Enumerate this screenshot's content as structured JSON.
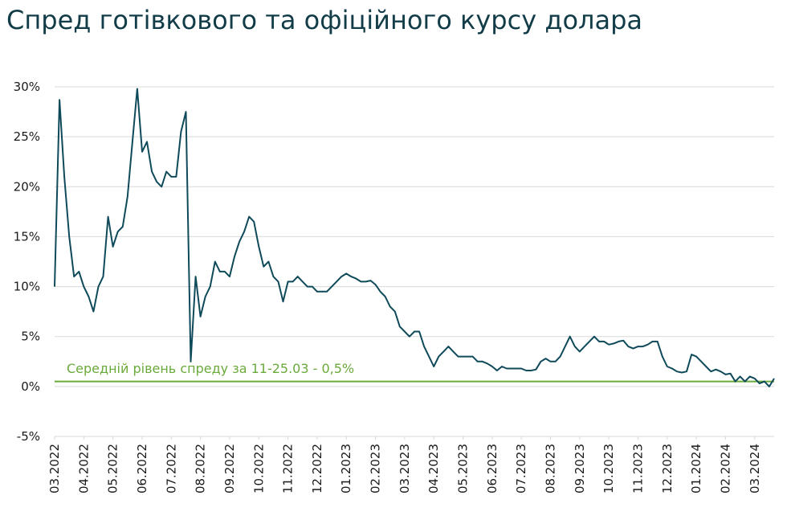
{
  "chart_data": {
    "type": "line",
    "title": "Спред готівкового та офіційного курсу долара",
    "series": [
      {
        "color": "#0f4a5a",
        "values": [
          10,
          28.7,
          21,
          15,
          11,
          11.5,
          10,
          9,
          7.5,
          10,
          11,
          17,
          14,
          15.5,
          16,
          19,
          24.5,
          29.8,
          23.5,
          24.5,
          21.5,
          20.5,
          20,
          21.5,
          21,
          21,
          25.5,
          27.5,
          2.5,
          11,
          7,
          9,
          10,
          12.5,
          11.5,
          11.5,
          11,
          13,
          14.5,
          15.5,
          17,
          16.5,
          14,
          12,
          12.5,
          11,
          10.5,
          8.5,
          10.5,
          10.5,
          11,
          10.5,
          10,
          10,
          9.5,
          9.5,
          9.5,
          10,
          10.5,
          11,
          11.3,
          11,
          10.8,
          10.5,
          10.5,
          10.6,
          10.2,
          9.5,
          9,
          8,
          7.5,
          6,
          5.5,
          5,
          5.5,
          5.5,
          4,
          3,
          2,
          3,
          3.5,
          4,
          3.5,
          3,
          3,
          3,
          3,
          2.5,
          2.5,
          2.3,
          2,
          1.6,
          2,
          1.8,
          1.8,
          1.8,
          1.8,
          1.6,
          1.6,
          1.7,
          2.5,
          2.8,
          2.5,
          2.5,
          3,
          4,
          5,
          4,
          3.5,
          4,
          4.5,
          5,
          4.5,
          4.5,
          4.2,
          4.3,
          4.5,
          4.6,
          4,
          3.8,
          4,
          4,
          4.2,
          4.5,
          4.5,
          3,
          2,
          1.8,
          1.5,
          1.4,
          1.5,
          3.2,
          3,
          2.5,
          2,
          1.5,
          1.7,
          1.5,
          1.2,
          1.3,
          0.5,
          1,
          0.5,
          1,
          0.8,
          0.3,
          0.5,
          0,
          0.8
        ]
      }
    ],
    "xlim": [
      0,
      148
    ],
    "xticks": [
      {
        "value": 0,
        "label": "03.2022"
      },
      {
        "value": 6,
        "label": "04.2022"
      },
      {
        "value": 12,
        "label": "05.2022"
      },
      {
        "value": 18,
        "label": "06.2022"
      },
      {
        "value": 24,
        "label": "07.2022"
      },
      {
        "value": 30,
        "label": "08.2022"
      },
      {
        "value": 36,
        "label": "09.2022"
      },
      {
        "value": 42,
        "label": "10.2022"
      },
      {
        "value": 48,
        "label": "11.2022"
      },
      {
        "value": 54,
        "label": "12.2022"
      },
      {
        "value": 60,
        "label": "01.2023"
      },
      {
        "value": 66,
        "label": "02.2023"
      },
      {
        "value": 72,
        "label": "03.2023"
      },
      {
        "value": 78,
        "label": "04.2023"
      },
      {
        "value": 84,
        "label": "05.2023"
      },
      {
        "value": 90,
        "label": "06.2023"
      },
      {
        "value": 96,
        "label": "07.2023"
      },
      {
        "value": 102,
        "label": "08.2023"
      },
      {
        "value": 108,
        "label": "09.2023"
      },
      {
        "value": 114,
        "label": "10.2023"
      },
      {
        "value": 120,
        "label": "11.2023"
      },
      {
        "value": 126,
        "label": "12.2023"
      },
      {
        "value": 132,
        "label": "01.2024"
      },
      {
        "value": 138,
        "label": "02.2024"
      },
      {
        "value": 144,
        "label": "03.2024"
      }
    ],
    "ylim": [
      -5,
      30
    ],
    "yticks": [
      {
        "value": 30,
        "label": "30%"
      },
      {
        "value": 25,
        "label": "25%"
      },
      {
        "value": 20,
        "label": "20%"
      },
      {
        "value": 15,
        "label": "15%"
      },
      {
        "value": 10,
        "label": "10%"
      },
      {
        "value": 5,
        "label": "5%"
      },
      {
        "value": 0,
        "label": "0%"
      },
      {
        "value": -5,
        "label": "-5%"
      }
    ],
    "grid": true,
    "reference_line": {
      "value": 0.5,
      "label": "Середній рівень спреду за 11-25.03 - 0,5%",
      "color": "#6aaa3a"
    }
  }
}
